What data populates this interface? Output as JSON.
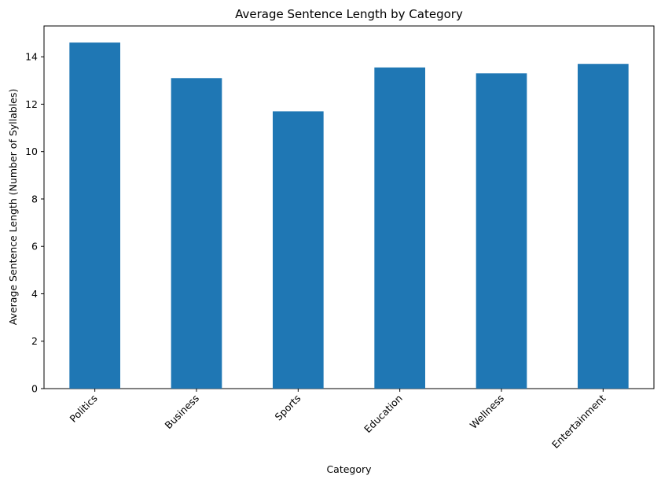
{
  "chart_data": {
    "type": "bar",
    "title": "Average Sentence Length by Category",
    "xlabel": "Category",
    "ylabel": "Average Sentence Length (Number of Syllables)",
    "categories": [
      "Politics",
      "Business",
      "Sports",
      "Education",
      "Wellness",
      "Entertainment"
    ],
    "values": [
      14.6,
      13.1,
      11.7,
      13.55,
      13.3,
      13.7
    ],
    "ylim": [
      0,
      15.3
    ],
    "yticks": [
      0,
      2,
      4,
      6,
      8,
      10,
      12,
      14
    ],
    "ytick_labels": [
      "0",
      "2",
      "4",
      "6",
      "8",
      "10",
      "12",
      "14"
    ],
    "bar_color": "#1f77b4",
    "grid": false,
    "legend": "none"
  }
}
